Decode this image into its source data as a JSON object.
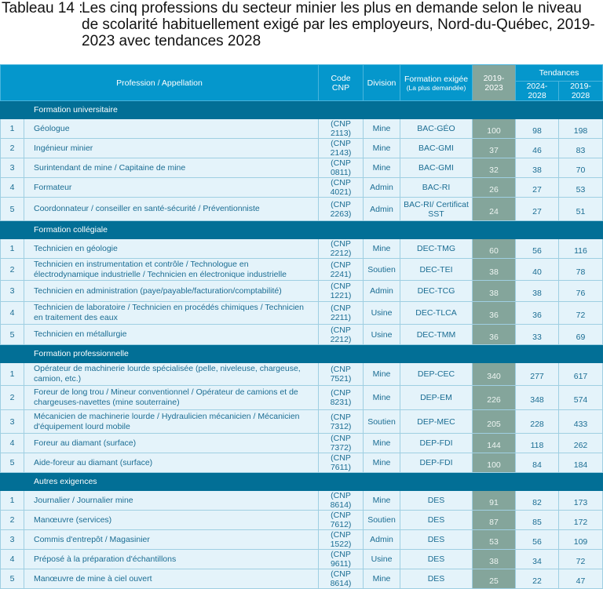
{
  "title": {
    "label": "Tableau 14 :",
    "text": "Les cinq professions du secteur minier les plus en demande selon le niveau de scolarité habituellement exigé par les employeurs, Nord-du-Québec, 2019-2023 avec tendances 2028"
  },
  "header": {
    "profession": "Profession / Appellation",
    "code": "Code CNP",
    "division": "Division",
    "formation": "Formation exigée",
    "formation_sub": "(La plus demandée)",
    "period": "2019-2023",
    "tendances": "Tendances",
    "t1": "2024-2028",
    "t2": "2019-2028"
  },
  "colors": {
    "header": "#0597cc",
    "section": "#026f96",
    "row": "#e4f3fa",
    "highlight": "#84a59b",
    "text": "#1b6d93"
  },
  "sections": [
    {
      "name": "Formation universitaire",
      "rows": [
        [
          "1",
          "Géologue",
          "(CNP 2113)",
          "Mine",
          "BAC-GÉO",
          "100",
          "98",
          "198"
        ],
        [
          "2",
          "Ingénieur minier",
          "(CNP 2143)",
          "Mine",
          "BAC-GMI",
          "37",
          "46",
          "83"
        ],
        [
          "3",
          "Surintendant de mine / Capitaine de mine",
          "(CNP 0811)",
          "Mine",
          "BAC-GMI",
          "32",
          "38",
          "70"
        ],
        [
          "4",
          "Formateur",
          "(CNP 4021)",
          "Admin",
          "BAC-RI",
          "26",
          "27",
          "53"
        ],
        [
          "5",
          "Coordonnateur / conseiller en santé-sécurité / Préventionniste",
          "(CNP 2263)",
          "Admin",
          "BAC-RI/ Certificat SST",
          "24",
          "27",
          "51"
        ]
      ]
    },
    {
      "name": "Formation collégiale",
      "rows": [
        [
          "1",
          "Technicien en géologie",
          "(CNP 2212)",
          "Mine",
          "DEC-TMG",
          "60",
          "56",
          "116"
        ],
        [
          "2",
          "Technicien en instrumentation et contrôle / Technologue en électrodynamique industrielle / Technicien en électronique industrielle",
          "(CNP 2241)",
          "Soutien",
          "DEC-TEI",
          "38",
          "40",
          "78"
        ],
        [
          "3",
          "Technicien en administration (paye/payable/facturation/comptabilité)",
          "(CNP 1221)",
          "Admin",
          "DEC-TCG",
          "38",
          "38",
          "76"
        ],
        [
          "4",
          "Technicien de laboratoire / Technicien en procédés chimiques / Technicien en traitement des eaux",
          "(CNP 2211)",
          "Usine",
          "DEC-TLCA",
          "36",
          "36",
          "72"
        ],
        [
          "5",
          "Technicien en métallurgie",
          "(CNP 2212)",
          "Usine",
          "DEC-TMM",
          "36",
          "33",
          "69"
        ]
      ]
    },
    {
      "name": "Formation professionnelle",
      "rows": [
        [
          "1",
          "Opérateur de machinerie lourde spécialisée (pelle, niveleuse, chargeuse, camion, etc.)",
          "(CNP 7521)",
          "Mine",
          "DEP-CEC",
          "340",
          "277",
          "617"
        ],
        [
          "2",
          "Foreur de long trou / Mineur conventionnel / Opérateur de camions et de chargeuses-navettes (mine souterraine)",
          "(CNP 8231)",
          "Mine",
          "DEP-EM",
          "226",
          "348",
          "574"
        ],
        [
          "3",
          "Mécanicien de machinerie lourde / Hydraulicien mécanicien / Mécanicien d'équipement lourd mobile",
          "(CNP 7312)",
          "Soutien",
          "DEP-MEC",
          "205",
          "228",
          "433"
        ],
        [
          "4",
          "Foreur au diamant (surface)",
          "(CNP 7372)",
          "Mine",
          "DEP-FDI",
          "144",
          "118",
          "262"
        ],
        [
          "5",
          "Aide-foreur au diamant (surface)",
          "(CNP 7611)",
          "Mine",
          "DEP-FDI",
          "100",
          "84",
          "184"
        ]
      ]
    },
    {
      "name": "Autres exigences",
      "rows": [
        [
          "1",
          "Journalier / Journalier mine",
          "(CNP 8614)",
          "Mine",
          "DES",
          "91",
          "82",
          "173"
        ],
        [
          "2",
          "Manœuvre (services)",
          "(CNP 7612)",
          "Soutien",
          "DES",
          "87",
          "85",
          "172"
        ],
        [
          "3",
          "Commis d'entrepôt / Magasinier",
          "(CNP 1522)",
          "Admin",
          "DES",
          "53",
          "56",
          "109"
        ],
        [
          "4",
          "Préposé à la préparation d'échantillons",
          "(CNP 9611)",
          "Usine",
          "DES",
          "38",
          "34",
          "72"
        ],
        [
          "5",
          "Manœuvre de mine à ciel ouvert",
          "(CNP 8614)",
          "Mine",
          "DES",
          "25",
          "22",
          "47"
        ]
      ]
    }
  ]
}
